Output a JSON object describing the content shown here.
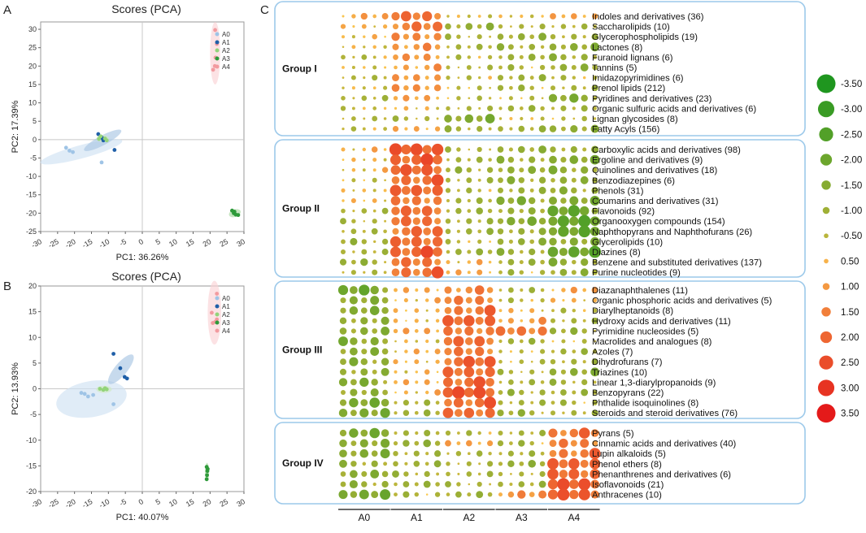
{
  "panel_labels": {
    "a": "A",
    "b": "B",
    "c": "C"
  },
  "chart_data": [
    {
      "type": "scatter",
      "panel": "A",
      "title": "Scores (PCA)",
      "xlabel": "PC1: 36.26%",
      "ylabel": "PC2: 17.39%",
      "xlim": [
        -30,
        30
      ],
      "ylim": [
        -25,
        32
      ],
      "xticks": [
        -30,
        -25,
        -20,
        -15,
        -10,
        -5,
        0,
        5,
        10,
        15,
        20,
        25,
        30
      ],
      "yticks": [
        -25,
        -20,
        -15,
        -10,
        -5,
        0,
        5,
        10,
        15,
        20,
        25,
        30
      ],
      "tick_labels_x": [
        "-30",
        "-25",
        "-20",
        "-15",
        "-10",
        "-5",
        "0",
        "5",
        "10",
        "15",
        "20",
        "25",
        "30"
      ],
      "tick_labels_y": [
        "-25",
        "-20",
        "-15",
        "-10",
        "-5",
        "0",
        "5",
        "10",
        "15",
        "20",
        "25",
        "30"
      ],
      "legend": [
        "A0",
        "A1",
        "A2",
        "A3",
        "A4"
      ],
      "colors": [
        "#9fc4e6",
        "#1f5fa8",
        "#93d47a",
        "#2e9a3a",
        "#f29a9f"
      ],
      "ellipse_colors": [
        "#cfe2f3",
        "#a9c6e3",
        "#cfeac3",
        "#a9d9a1",
        "#fbd3d5"
      ],
      "series": [
        {
          "name": "A0",
          "points": [
            [
              -22.5,
              -2.2
            ],
            [
              -21.5,
              -3.0
            ],
            [
              -20.5,
              -3.4
            ],
            [
              -12,
              -6.2
            ]
          ],
          "ellipse": {
            "cx": -18,
            "cy": -3.3,
            "rx": 12.5,
            "ry": 1.8,
            "angle": -15
          }
        },
        {
          "name": "A1",
          "points": [
            [
              -13,
              1.5
            ],
            [
              -12.2,
              0.8
            ],
            [
              -11.8,
              0.4
            ],
            [
              -8.2,
              -2.8
            ],
            [
              -11.5,
              -0.2
            ]
          ],
          "ellipse": {
            "cx": -11.7,
            "cy": -0.2,
            "rx": 6.2,
            "ry": 1.3,
            "angle": -28
          }
        },
        {
          "name": "A2",
          "points": [
            [
              -12.3,
              0.9
            ],
            [
              -11.0,
              0.3
            ],
            [
              -10.5,
              -0.2
            ],
            [
              -12.8,
              0.2
            ]
          ],
          "ellipse": {
            "cx": -11.7,
            "cy": 0.3,
            "rx": 1.8,
            "ry": 1.0,
            "angle": 0
          }
        },
        {
          "name": "A3",
          "points": [
            [
              26.5,
              -19.3
            ],
            [
              27.0,
              -20.0
            ],
            [
              27.6,
              -20.4
            ],
            [
              28.3,
              -20.5
            ],
            [
              27.2,
              -19.6
            ]
          ],
          "ellipse": {
            "cx": 27.3,
            "cy": -20,
            "rx": 1.8,
            "ry": 1.0,
            "angle": -20
          }
        },
        {
          "name": "A4",
          "points": [
            [
              21.5,
              29.8
            ],
            [
              22.0,
              26.0
            ],
            [
              21.6,
              22.3
            ],
            [
              21.4,
              20.0
            ],
            [
              20.9,
              19.0
            ]
          ],
          "ellipse": {
            "cx": 21.5,
            "cy": 23.5,
            "rx": 1.5,
            "ry": 8.5,
            "angle": 0
          }
        }
      ]
    },
    {
      "type": "scatter",
      "panel": "B",
      "title": "Scores (PCA)",
      "xlabel": "PC1: 40.07%",
      "ylabel": "PC2: 13.93%",
      "xlim": [
        -30,
        30
      ],
      "ylim": [
        -20,
        20
      ],
      "xticks": [
        -30,
        -25,
        -20,
        -15,
        -10,
        -5,
        0,
        5,
        10,
        15,
        20,
        25,
        30
      ],
      "yticks": [
        -20,
        -15,
        -10,
        -5,
        0,
        5,
        10,
        15,
        20
      ],
      "tick_labels_x": [
        "-30",
        "-25",
        "-20",
        "-15",
        "-10",
        "-5",
        "0",
        "5",
        "10",
        "15",
        "20",
        "25",
        "30"
      ],
      "tick_labels_y": [
        "-20",
        "-15",
        "-10",
        "-5",
        "0",
        "5",
        "10",
        "15",
        "20"
      ],
      "legend": [
        "A0",
        "A1",
        "A2",
        "A3",
        "A4"
      ],
      "colors": [
        "#9fc4e6",
        "#1f5fa8",
        "#93d47a",
        "#2e9a3a",
        "#f29a9f"
      ],
      "ellipse_colors": [
        "#cfe2f3",
        "#a9c6e3",
        "#cfeac3",
        "#a9d9a1",
        "#fbd3d5"
      ],
      "series": [
        {
          "name": "A0",
          "points": [
            [
              -18,
              -0.8
            ],
            [
              -17,
              -1.0
            ],
            [
              -16,
              -1.5
            ],
            [
              -8.5,
              -3.0
            ],
            [
              -14.5,
              -1.2
            ]
          ],
          "ellipse": {
            "cx": -15,
            "cy": -2.0,
            "rx": 10.5,
            "ry": 3.5,
            "angle": -10
          }
        },
        {
          "name": "A1",
          "points": [
            [
              -8.5,
              6.8
            ],
            [
              -6.5,
              4.0
            ],
            [
              -5.2,
              2.3
            ],
            [
              -4.5,
              2.0
            ]
          ],
          "ellipse": {
            "cx": -6.3,
            "cy": 3.8,
            "rx": 5.5,
            "ry": 1.2,
            "angle": -50
          }
        },
        {
          "name": "A2",
          "points": [
            [
              -12.5,
              0.0
            ],
            [
              -11.5,
              -0.2
            ],
            [
              -10.5,
              -0.1
            ],
            [
              -11.0,
              0.1
            ]
          ],
          "ellipse": {
            "cx": -11.3,
            "cy": -0.1,
            "rx": 2.3,
            "ry": 0.7,
            "angle": 0
          }
        },
        {
          "name": "A3",
          "points": [
            [
              19.0,
              -15.2
            ],
            [
              19.2,
              -16.0
            ],
            [
              19.1,
              -16.8
            ],
            [
              19.0,
              -17.6
            ],
            [
              19.3,
              -15.6
            ]
          ],
          "ellipse": {
            "cx": 19.1,
            "cy": -16.2,
            "rx": 0.6,
            "ry": 1.8,
            "angle": 0
          }
        },
        {
          "name": "A4",
          "points": [
            [
              22.0,
              18.5
            ],
            [
              20.5,
              14.8
            ],
            [
              22.0,
              13.5
            ],
            [
              21.5,
              13.0
            ],
            [
              20.8,
              12.8
            ]
          ],
          "ellipse": {
            "cx": 21.3,
            "cy": 14.8,
            "rx": 2.0,
            "ry": 6.2,
            "angle": 0
          }
        }
      ]
    },
    {
      "type": "bubble-heatmap",
      "panel": "C",
      "column_groups": [
        "A0",
        "A1",
        "A2",
        "A3",
        "A4"
      ],
      "columns_per_group": 5,
      "row_groups": [
        {
          "name": "Group I",
          "rows": [
            "Indoles and derivatives  (36)",
            "Saccharolipids (10)",
            "Glycerophospholipids (19)",
            "Lactones (8)",
            "Furanoid lignans (6)",
            "Tannins (5)",
            "Imidazopyrimidines (6)",
            "Prenol lipids (212)",
            "Pyridines and derivatives (23)",
            "Organic sulfuric acids and derivatives (6)",
            "Lignan glycosides (8)",
            "Fatty Acyls (156)"
          ],
          "profile": [
            [
              0.6,
              0.4,
              0.2,
              0.1,
              -0.3,
              -0.2,
              -0.3,
              -0.2,
              -0.4,
              -0.3,
              -0.4,
              -0.3
            ],
            [
              1.8,
              1.4,
              1.2,
              1.0,
              1.0,
              0.8,
              0.8,
              1.2,
              0.6,
              0.4,
              -0.6,
              0.6
            ],
            [
              -0.2,
              -0.8,
              -0.6,
              -0.6,
              -0.4,
              -0.4,
              -0.2,
              -0.4,
              -0.2,
              -0.6,
              -1.2,
              -0.8
            ],
            [
              0.2,
              -0.6,
              -0.8,
              -0.9,
              -0.8,
              -0.6,
              -0.8,
              -0.6,
              -0.4,
              -0.6,
              -0.2,
              -0.6
            ],
            [
              0.6,
              -0.4,
              -0.8,
              -1.0,
              -1.0,
              -1.0,
              -0.4,
              -0.6,
              -1.2,
              -0.8,
              -0.2,
              -1.2
            ]
          ]
        },
        {
          "name": "Group II",
          "rows": [
            "Carboxylic acids and derivatives (98)",
            "Ergoline and derivatives (9)",
            "Quinolines and derivatives (18)",
            "Benzodiazepines (6)",
            "Phenols  (31)",
            "Coumarins and derivatives  (31)",
            "Flavonoids  (92)",
            "Organooxygen compounds (154)",
            "Naphthopyrans  and Naphthofurans (26)",
            "Glycerolipids (10)",
            "Diazines (8)",
            "Benzene and substituted derivatives (137)",
            "Purine nucleotides (9)"
          ],
          "profile": [
            [
              0.4,
              0.2,
              0.3,
              -0.4,
              0.3,
              0.2,
              -0.4,
              -0.6,
              -0.6,
              -0.8,
              -0.6,
              -0.8,
              -0.6
            ],
            [
              2.2,
              2.0,
              2.0,
              1.8,
              1.8,
              1.6,
              1.6,
              1.8,
              1.6,
              1.8,
              2.0,
              1.6,
              1.8
            ],
            [
              -0.6,
              -0.6,
              -0.8,
              -0.6,
              -0.4,
              -0.8,
              -0.6,
              -0.8,
              -0.6,
              -0.4,
              -0.8,
              0.4,
              0.6
            ],
            [
              -0.8,
              -1.0,
              -1.0,
              -1.0,
              -0.8,
              -1.2,
              -1.0,
              -1.2,
              -1.0,
              -0.8,
              -1.0,
              -0.8,
              -0.6
            ],
            [
              -1.0,
              -1.2,
              -1.2,
              -1.0,
              -1.0,
              -1.4,
              -1.8,
              -2.2,
              -1.8,
              -1.4,
              -1.8,
              -1.2,
              -1.0
            ]
          ]
        },
        {
          "name": "Group III",
          "rows": [
            "Diazanaphthalenes (11)",
            "Organic phosphoric acids and derivatives (5)",
            "Diarylheptanoids (8)",
            "Hydroxy acids and derivatives (11)",
            "Pyrimidine nucleosides (5)",
            "Macrolides and analogues (8)",
            "Azoles (7)",
            "Dihydrofurans  (7)",
            "Triazines (10)",
            "Linear 1,3-diarylpropanoids (9)",
            "Benzopyrans (22)",
            "Phthalide isoquinolines (8)",
            "Steroids and steroid derivatives  (76)"
          ],
          "profile": [
            [
              -1.6,
              -1.4,
              -1.2,
              -1.2,
              -1.0,
              -1.4,
              -1.2,
              -1.2,
              -1.0,
              -1.2,
              -1.2,
              -1.4,
              -1.6
            ],
            [
              0.6,
              0.4,
              0.2,
              0.4,
              0.6,
              0.2,
              0.4,
              0.4,
              0.2,
              0.6,
              0.4,
              -0.8,
              -0.6
            ],
            [
              1.2,
              1.4,
              1.6,
              1.8,
              1.6,
              1.6,
              1.6,
              1.8,
              1.8,
              1.8,
              2.2,
              1.8,
              1.6
            ],
            [
              -0.6,
              -0.4,
              0.4,
              0.8,
              1.4,
              -0.6,
              -0.4,
              -0.2,
              -0.6,
              -0.6,
              -0.8,
              -0.6,
              -0.8
            ],
            [
              0.6,
              0.4,
              -0.4,
              -0.6,
              -0.8,
              -0.4,
              -0.6,
              -0.8,
              -1.0,
              -0.8,
              -0.8,
              -0.6,
              -0.6
            ]
          ]
        },
        {
          "name": "Group IV",
          "rows": [
            "Pyrans (5)",
            "Cinnamic acids and derivatives  (40)",
            "Lupin alkaloids (5)",
            "Phenol ethers (8)",
            "Phenanthrenes and derivatives (6)",
            "Isoflavonoids (21)",
            "Anthracenes (10)"
          ],
          "profile": [
            [
              -1.4,
              -1.4,
              -1.2,
              -1.0,
              -1.2,
              -1.0,
              -1.6
            ],
            [
              -0.8,
              -0.8,
              -0.8,
              -0.6,
              -0.8,
              -0.8,
              -0.6
            ],
            [
              -0.4,
              0.6,
              -0.4,
              -0.6,
              -0.4,
              -0.6,
              -0.8
            ],
            [
              -0.6,
              -0.6,
              -0.8,
              -0.8,
              -0.6,
              -0.6,
              1.0
            ],
            [
              1.6,
              1.4,
              1.6,
              1.8,
              2.0,
              2.0,
              2.2
            ]
          ]
        }
      ],
      "legend_values": [
        "-3.50",
        "-3.00",
        "-2.50",
        "-2.00",
        "-1.50",
        "-1.00",
        "-0.50",
        "0.50",
        "1.00",
        "1.50",
        "2.00",
        "2.50",
        "3.00",
        "3.50"
      ],
      "scale": {
        "min": -3.5,
        "max": 3.5,
        "negative_color": "#2a9a2a",
        "neutral_color": "#b5b53a",
        "positive_color": "#e01d1d",
        "light_positive": "#f5b041"
      }
    }
  ]
}
